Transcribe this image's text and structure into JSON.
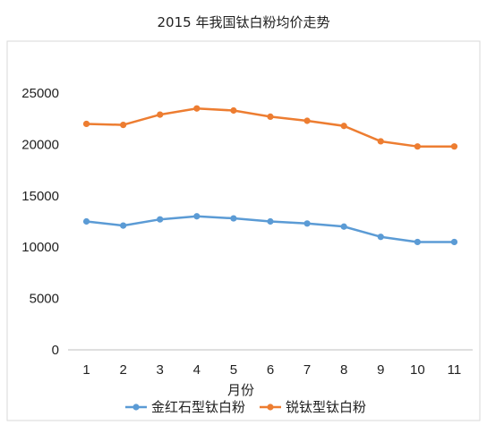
{
  "chart_data": {
    "type": "line",
    "title": "2015 年我国钛白粉均价走势",
    "xlabel": "月份",
    "ylabel": "",
    "x": [
      "1",
      "2",
      "3",
      "4",
      "5",
      "6",
      "7",
      "8",
      "9",
      "10",
      "11"
    ],
    "ylim": [
      0,
      25000
    ],
    "yticks": [
      0,
      5000,
      10000,
      15000,
      20000,
      25000
    ],
    "grid": false,
    "legend": "bottom",
    "series": [
      {
        "name": "金红石型钛白粉",
        "color": "#5B9BD5",
        "values": [
          12500,
          12100,
          12700,
          13000,
          12800,
          12500,
          12300,
          12000,
          11000,
          10500,
          10500
        ]
      },
      {
        "name": "锐钛型钛白粉",
        "color": "#ED7D31",
        "values": [
          22000,
          21900,
          22900,
          23500,
          23300,
          22700,
          22300,
          21800,
          20300,
          19800,
          19800
        ]
      }
    ]
  }
}
